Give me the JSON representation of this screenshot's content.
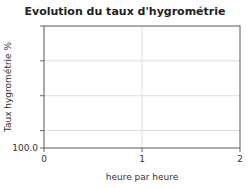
{
  "chart_data": {
    "type": "line",
    "title": "Evolution du taux d'hygrométrie",
    "x_label": "heure par heure",
    "y_label": "Taux hygrométrie %",
    "xlim": [
      0,
      2
    ],
    "xticks": [
      0,
      1,
      2
    ],
    "ylim": [
      100,
      135
    ],
    "yticks": [
      {
        "value": 100,
        "label": "100.0"
      },
      {
        "value": 105,
        "label": null
      },
      {
        "value": 115,
        "label": null
      },
      {
        "value": 125,
        "label": null
      },
      {
        "value": 135,
        "label": null
      }
    ],
    "grid": true
  }
}
